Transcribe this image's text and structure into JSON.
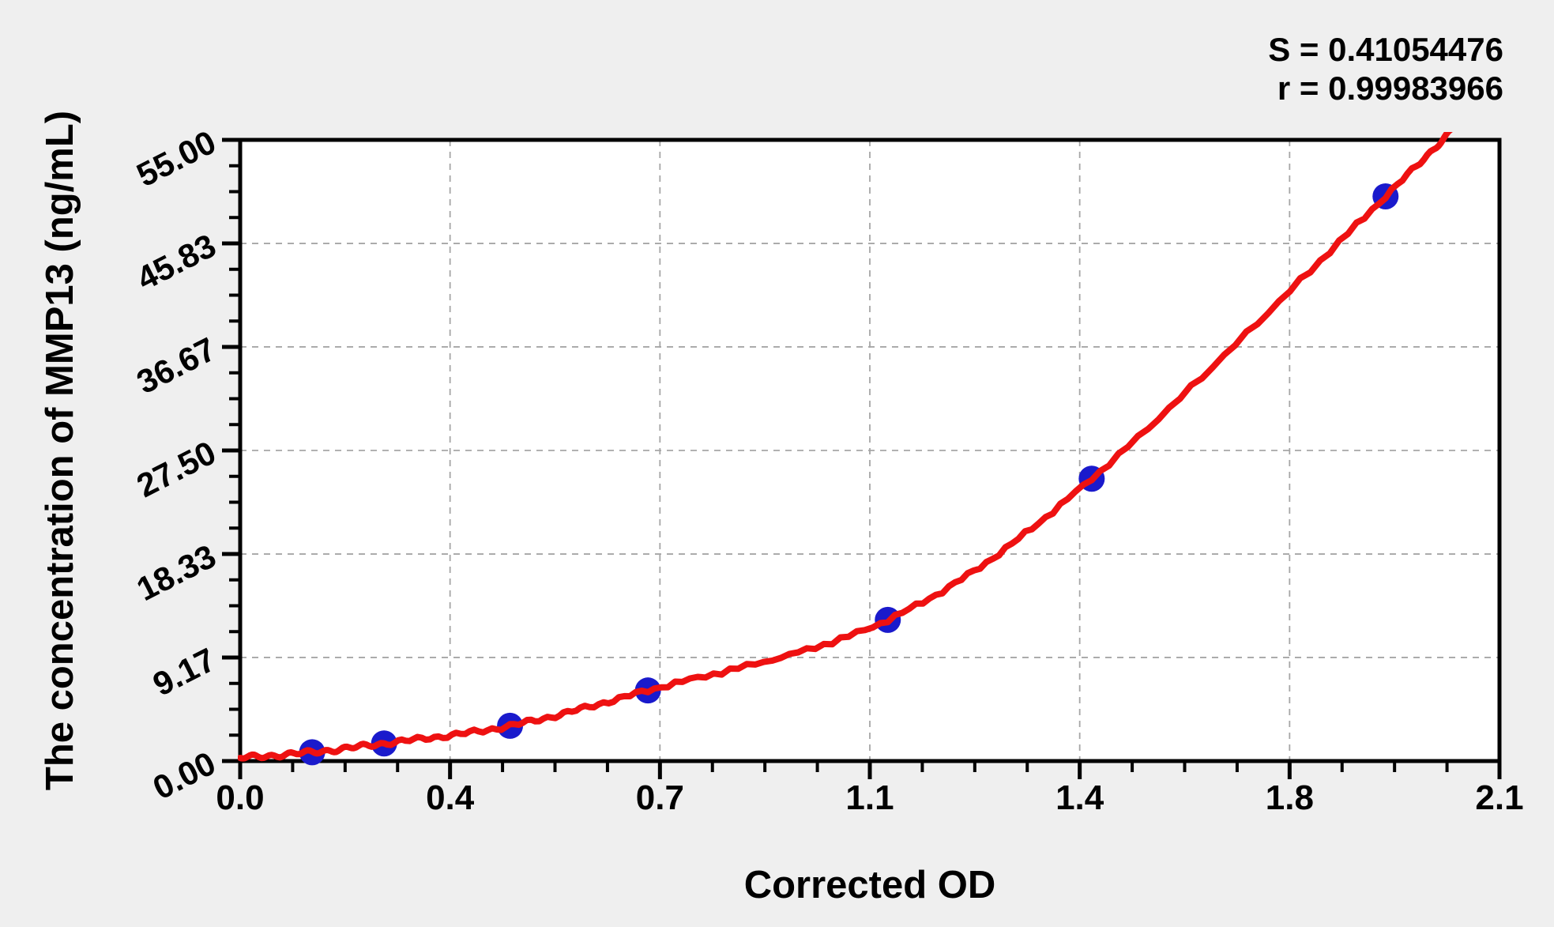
{
  "chart_data": {
    "type": "scatter",
    "title": "",
    "xlabel": "Corrected OD",
    "ylabel": "The concentration of MMP13 (ng/mL)",
    "annotations": [
      "S = 0.41054476",
      "r = 0.99983966"
    ],
    "xlim": [
      0,
      2.1
    ],
    "ylim": [
      0,
      55
    ],
    "x_ticks": {
      "values": [
        0,
        0.35,
        0.7,
        1.05,
        1.4,
        1.75,
        2.1
      ],
      "labels": [
        "0.0",
        "0.4",
        "0.7",
        "1.1",
        "1.4",
        "1.8",
        "2.1"
      ]
    },
    "y_ticks": {
      "values": [
        0,
        9.17,
        18.33,
        27.5,
        36.67,
        45.83,
        55
      ],
      "labels": [
        "0.00",
        "9.17",
        "18.33",
        "27.50",
        "36.67",
        "45.83",
        "55.00"
      ]
    },
    "minor_ticks_between_major": 3,
    "grid": "dashed",
    "legend": "none",
    "points": [
      {
        "od": 0.12,
        "concentration": 0.78
      },
      {
        "od": 0.24,
        "concentration": 1.56
      },
      {
        "od": 0.45,
        "concentration": 3.12
      },
      {
        "od": 0.68,
        "concentration": 6.25
      },
      {
        "od": 1.08,
        "concentration": 12.5
      },
      {
        "od": 1.42,
        "concentration": 25
      },
      {
        "od": 1.91,
        "concentration": 50
      }
    ],
    "curve_anchors": [
      [
        0,
        0.28
      ],
      [
        0.12,
        0.78
      ],
      [
        0.24,
        1.56
      ],
      [
        0.45,
        3.12
      ],
      [
        0.68,
        6.25
      ],
      [
        1.08,
        12.5
      ],
      [
        1.42,
        25
      ],
      [
        1.91,
        50
      ],
      [
        2.04,
        57
      ]
    ],
    "colors": {
      "curve": "#ee1111",
      "point": "#1a1acc",
      "grid": "#a6a6a6",
      "axis": "#000000",
      "plot_bg": "#ffffff",
      "page_bg": "#efefef"
    }
  }
}
